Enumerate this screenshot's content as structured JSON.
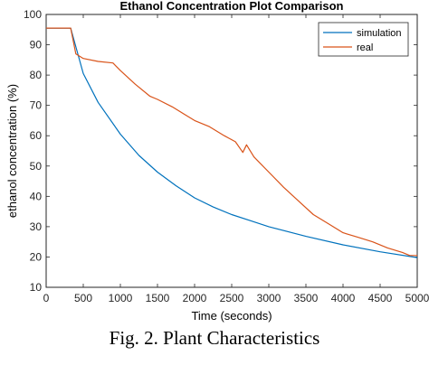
{
  "caption": "Fig. 2. Plant Characteristics",
  "chart_data": {
    "type": "line",
    "title": "Ethanol Concentration Plot Comparison",
    "xlabel": "Time (seconds)",
    "ylabel": "ethanol concentration (%)",
    "xlim": [
      0,
      5000
    ],
    "ylim": [
      10,
      100
    ],
    "xticks": [
      0,
      500,
      1000,
      1500,
      2000,
      2500,
      3000,
      3500,
      4000,
      4500,
      5000
    ],
    "yticks": [
      10,
      20,
      30,
      40,
      50,
      60,
      70,
      80,
      90,
      100
    ],
    "grid": false,
    "legend_position": "top-right",
    "series": [
      {
        "name": "simulation",
        "color": "#0072BD",
        "x": [
          0,
          330,
          500,
          700,
          1000,
          1250,
          1500,
          1750,
          2000,
          2250,
          2500,
          2750,
          3000,
          3500,
          4000,
          4500,
          5000
        ],
        "y": [
          95.5,
          95.5,
          80.5,
          71.0,
          60.5,
          53.5,
          48.0,
          43.5,
          39.5,
          36.5,
          34.0,
          32.0,
          30.0,
          26.8,
          24.0,
          21.7,
          19.8
        ]
      },
      {
        "name": "real",
        "color": "#D95319",
        "x": [
          0,
          330,
          400,
          500,
          700,
          900,
          1000,
          1200,
          1400,
          1500,
          1700,
          1900,
          2000,
          2200,
          2400,
          2550,
          2650,
          2700,
          2800,
          3000,
          3200,
          3400,
          3600,
          3800,
          4000,
          4200,
          4400,
          4600,
          4800,
          4900,
          5000
        ],
        "y": [
          95.5,
          95.5,
          87.0,
          85.5,
          84.5,
          84.0,
          81.5,
          77.0,
          73.0,
          72.0,
          69.5,
          66.5,
          65.0,
          63.0,
          60.0,
          58.0,
          54.5,
          57.0,
          53.0,
          48.0,
          43.0,
          38.5,
          34.0,
          31.0,
          28.0,
          26.5,
          25.0,
          23.0,
          21.5,
          20.5,
          20.5
        ]
      }
    ]
  }
}
